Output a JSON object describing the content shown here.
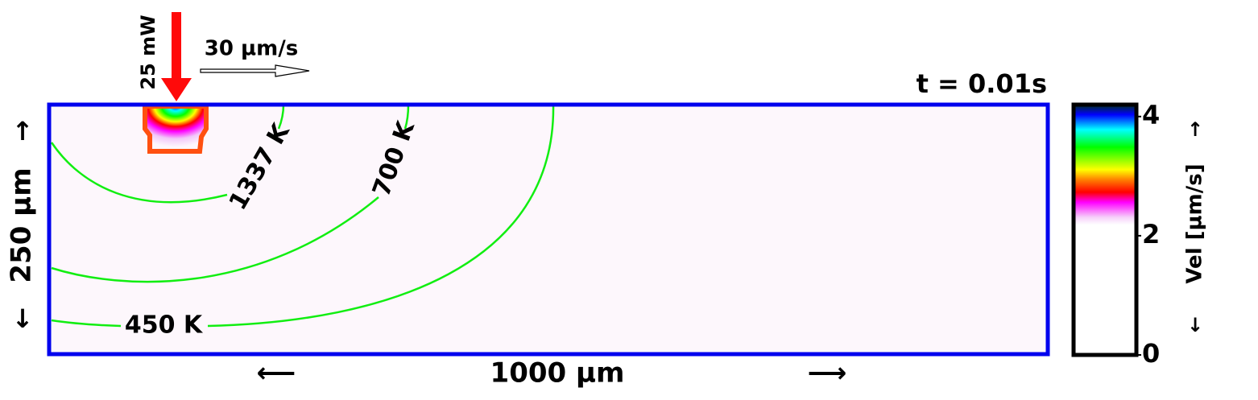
{
  "header": {
    "power": "25 mW",
    "speed": "30 µm/s",
    "time": "t = 0.01s"
  },
  "axes": {
    "height": "250 µm",
    "width": "1000 µm"
  },
  "contours": [
    {
      "label": "1337 K"
    },
    {
      "label": "700 K"
    },
    {
      "label": "450 K"
    }
  ],
  "colorbar": {
    "label": "Vel [µm/s]",
    "lim": [
      0,
      4.2
    ],
    "ticks": [
      0,
      2,
      4
    ]
  }
}
